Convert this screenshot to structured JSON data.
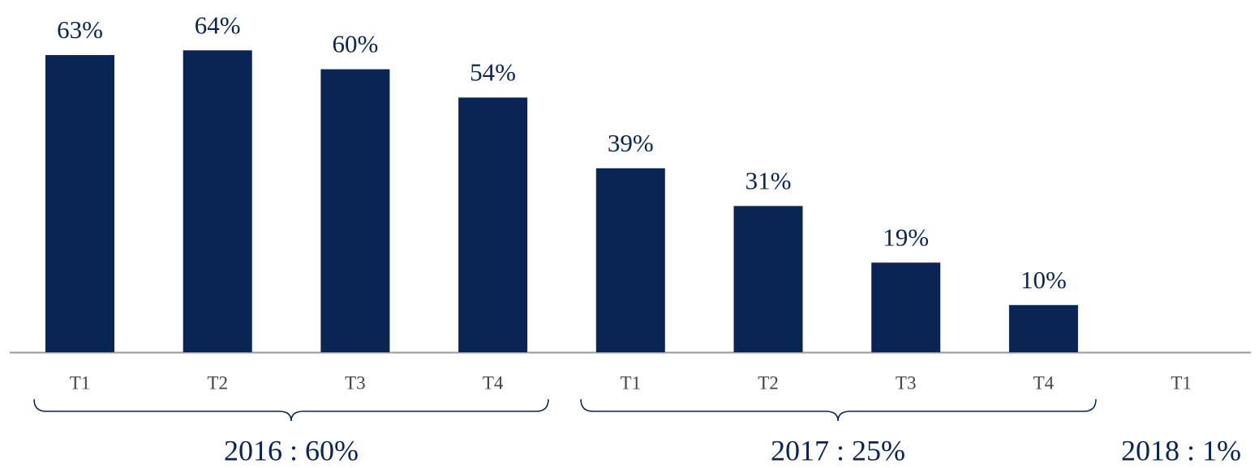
{
  "chart_data": {
    "type": "bar",
    "categories": [
      "T1",
      "T2",
      "T3",
      "T4",
      "T1",
      "T2",
      "T3",
      "T4",
      "T1"
    ],
    "values": [
      63,
      64,
      60,
      54,
      39,
      31,
      19,
      10,
      null
    ],
    "value_labels": [
      "63%",
      "64%",
      "60%",
      "54%",
      "39%",
      "31%",
      "19%",
      "10%",
      null
    ],
    "color": "#0a2453",
    "groups": [
      {
        "label": "2016 : 60%"
      },
      {
        "label": "2017 : 25%"
      },
      {
        "label": "2018 : 1%"
      }
    ]
  }
}
